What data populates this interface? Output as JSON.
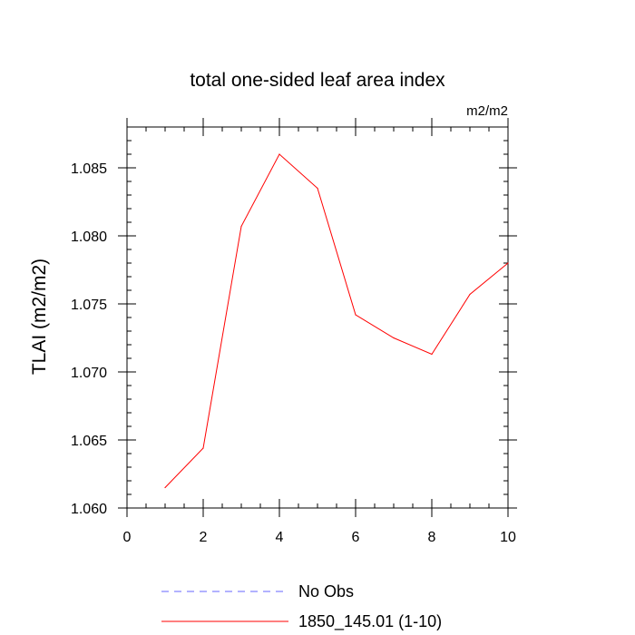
{
  "chart_data": {
    "type": "line",
    "title": "total one-sided leaf area index",
    "units_label": "m2/m2",
    "xlabel": "",
    "ylabel": "TLAI  (m2/m2)",
    "xlim": [
      0,
      10
    ],
    "ylim": [
      1.06,
      1.088
    ],
    "xticks": [
      0,
      2,
      4,
      6,
      8,
      10
    ],
    "xtick_labels": [
      "0",
      "2",
      "4",
      "6",
      "8",
      "10"
    ],
    "yticks": [
      1.06,
      1.065,
      1.07,
      1.075,
      1.08,
      1.085
    ],
    "ytick_labels": [
      "1.060",
      "1.065",
      "1.070",
      "1.075",
      "1.080",
      "1.085"
    ],
    "grid": false,
    "legend_position": "bottom",
    "series": [
      {
        "name": "No Obs",
        "color": "#6666ff",
        "style": "dashed",
        "x": [],
        "y": []
      },
      {
        "name": "1850_145.01 (1-10)",
        "color": "#ff0000",
        "style": "solid",
        "x": [
          1,
          2,
          3,
          4,
          5,
          6,
          7,
          8,
          9,
          10
        ],
        "y": [
          1.0615,
          1.0644,
          1.0807,
          1.086,
          1.0835,
          1.0742,
          1.0725,
          1.0713,
          1.0757,
          1.078
        ]
      }
    ]
  }
}
